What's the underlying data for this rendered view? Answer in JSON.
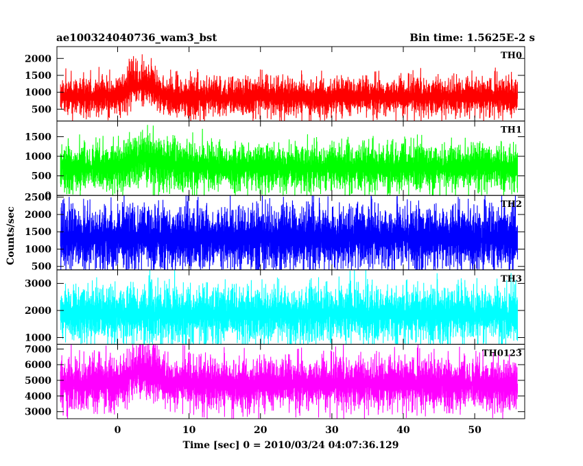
{
  "figure": {
    "left_title": "ae100324040736_wam3_bst",
    "right_title": "Bin time: 1.5625E-2 s",
    "ylabel": "Counts/sec",
    "xlabel": "Time [sec] 0 = 2010/03/24 04:07:36.129"
  },
  "chart_data": {
    "type": "line",
    "title": "ae100324040736_wam3_bst",
    "subtitle": "Bin time: 1.5625E-2 s",
    "xlabel": "Time [sec] 0 = 2010/03/24 04:07:36.129",
    "ylabel": "Counts/sec",
    "xlim": [
      -8.5,
      57
    ],
    "x_data_range": [
      -8,
      56
    ],
    "bin_time": 0.015625,
    "x_ticks": [
      0,
      10,
      20,
      30,
      40,
      50
    ],
    "grid": false,
    "legend": "none",
    "panels": [
      {
        "name": "TH0",
        "color": "#ff0000",
        "ylim": [
          150,
          2350
        ],
        "y_ticks": [
          500,
          1000,
          1500,
          2000
        ],
        "baseline_mean": 850,
        "baseline_spread": 260,
        "burst": {
          "start": 1,
          "peak": 2.5,
          "end": 6.5,
          "peak_mean": 1250
        },
        "x": [
          -8,
          -4,
          0,
          1,
          2,
          3,
          4,
          5,
          6,
          7,
          10,
          20,
          30,
          40,
          50,
          56
        ],
        "y_mean": [
          850,
          850,
          880,
          1050,
          1250,
          1200,
          1150,
          1100,
          1000,
          900,
          850,
          850,
          850,
          850,
          850,
          850
        ]
      },
      {
        "name": "TH1",
        "color": "#00ff00",
        "ylim": [
          0,
          1900
        ],
        "y_ticks": [
          0,
          500,
          1000,
          1500
        ],
        "baseline_mean": 700,
        "baseline_spread": 280,
        "burst": {
          "start": 0,
          "peak": 3,
          "end": 7,
          "peak_mean": 950
        },
        "x": [
          -8,
          -4,
          0,
          2,
          3,
          5,
          7,
          10,
          20,
          30,
          40,
          50,
          56
        ],
        "y_mean": [
          700,
          700,
          750,
          880,
          950,
          900,
          780,
          720,
          700,
          700,
          700,
          700,
          700
        ]
      },
      {
        "name": "TH2",
        "color": "#0000ff",
        "ylim": [
          400,
          2550
        ],
        "y_ticks": [
          500,
          1000,
          1500,
          2000,
          2500
        ],
        "baseline_mean": 1300,
        "baseline_spread": 420,
        "burst": null,
        "x": [
          -8,
          0,
          10,
          20,
          30,
          40,
          50,
          56
        ],
        "y_mean": [
          1300,
          1300,
          1300,
          1300,
          1300,
          1300,
          1300,
          1300
        ]
      },
      {
        "name": "TH3",
        "color": "#00ffff",
        "ylim": [
          750,
          3500
        ],
        "y_ticks": [
          1000,
          2000,
          3000
        ],
        "baseline_mean": 1850,
        "baseline_spread": 480,
        "burst": null,
        "x": [
          -8,
          0,
          10,
          20,
          30,
          40,
          50,
          56
        ],
        "y_mean": [
          1850,
          1850,
          1850,
          1850,
          1850,
          1850,
          1850,
          1850
        ]
      },
      {
        "name": "TH0123",
        "color": "#ff00ff",
        "ylim": [
          2550,
          7300
        ],
        "y_ticks": [
          3000,
          4000,
          5000,
          6000,
          7000
        ],
        "baseline_mean": 4750,
        "baseline_spread": 780,
        "burst": {
          "start": 0.5,
          "peak": 3,
          "end": 7,
          "peak_mean": 5600
        },
        "x": [
          -8,
          -4,
          0,
          2,
          3,
          5,
          7,
          10,
          20,
          30,
          40,
          50,
          56
        ],
        "y_mean": [
          4700,
          4700,
          4850,
          5400,
          5600,
          5300,
          4900,
          4750,
          4700,
          4750,
          4750,
          4750,
          4750
        ]
      }
    ]
  }
}
